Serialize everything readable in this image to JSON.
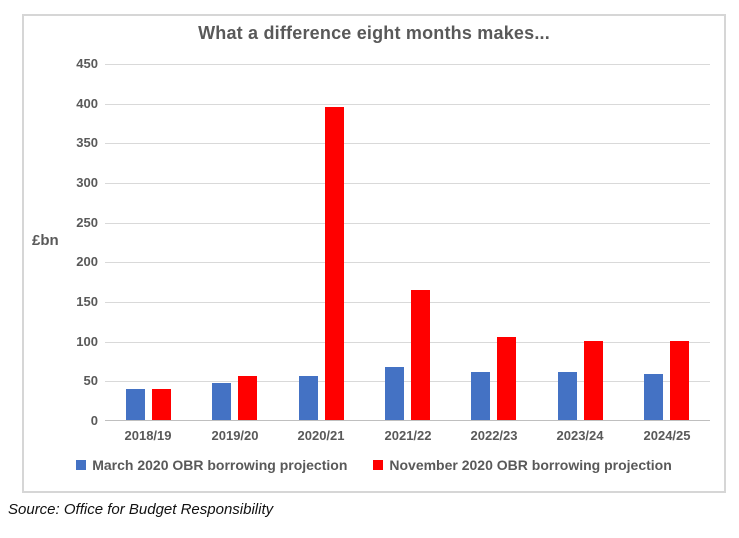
{
  "chart_data": {
    "type": "bar",
    "title": "What a difference eight months makes...",
    "xlabel": "",
    "ylabel": "£bn",
    "ylim": [
      0,
      450
    ],
    "ytick_step": 50,
    "grid": true,
    "legend_position": "bottom",
    "categories": [
      "2018/19",
      "2019/20",
      "2020/21",
      "2021/22",
      "2022/23",
      "2023/24",
      "2024/25"
    ],
    "series": [
      {
        "name": "March 2020 OBR borrowing projection",
        "color": "#4472C4",
        "values": [
          39,
          47,
          55,
          67,
          61,
          60,
          58
        ]
      },
      {
        "name": "November 2020 OBR borrowing projection",
        "color": "#FF0000",
        "values": [
          39,
          55,
          394,
          164,
          105,
          100,
          100
        ]
      }
    ]
  },
  "source": "Source: Office for Budget Responsibility",
  "colors": {
    "background": "#FFFFFF",
    "frame_border": "#D6D6D6",
    "gridline": "#D9D9D9",
    "axis_line": "#BFBFBF",
    "label_text": "#595959",
    "source_text": "#111111"
  }
}
